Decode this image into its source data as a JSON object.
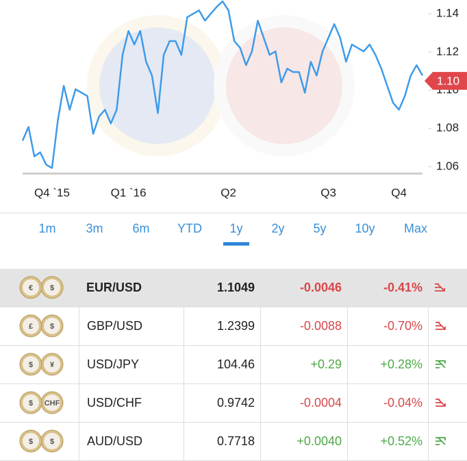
{
  "chart_data": {
    "type": "line",
    "values": [
      1.0736,
      1.0808,
      1.0654,
      1.0675,
      1.0611,
      1.0593,
      1.0844,
      1.1023,
      1.0898,
      1.1005,
      1.0987,
      1.097,
      1.0772,
      1.0862,
      1.0898,
      1.0826,
      1.0898,
      1.1185,
      1.131,
      1.1239,
      1.131,
      1.1149,
      1.1077,
      1.088,
      1.1185,
      1.1257,
      1.1257,
      1.1185,
      1.1382,
      1.14,
      1.1418,
      1.1364,
      1.14,
      1.1436,
      1.1465,
      1.1418,
      1.1257,
      1.1221,
      1.1131,
      1.1203,
      1.1364,
      1.1274,
      1.1185,
      1.1203,
      1.1041,
      1.1113,
      1.1095,
      1.1095,
      1.0987,
      1.1149,
      1.1077,
      1.1203,
      1.1274,
      1.1346,
      1.1274,
      1.1149,
      1.1239,
      1.1221,
      1.1203,
      1.1239,
      1.1185,
      1.1113,
      1.1023,
      1.0934,
      1.0898,
      1.097,
      1.1077,
      1.1131,
      1.1077
    ],
    "color": "#3d9be9",
    "xlim": [
      0,
      68
    ],
    "xticks": [
      {
        "value": 5,
        "label": "Q4 `15"
      },
      {
        "value": 18,
        "label": "Q1 `16"
      },
      {
        "value": 35,
        "label": "Q2"
      },
      {
        "value": 52,
        "label": "Q3"
      },
      {
        "value": 64,
        "label": "Q4"
      }
    ],
    "ylim": [
      1.0564,
      1.1472
    ],
    "yticks": [
      1.06,
      1.08,
      {
        "value": 1.1,
        "label": "1.10"
      },
      1.12,
      1.14
    ],
    "current": {
      "value": 1.1049,
      "label": "1.10",
      "color": "#e0474c"
    }
  },
  "ranges": {
    "items": [
      "1m",
      "3m",
      "6m",
      "YTD",
      "1y",
      "2y",
      "5y",
      "10y",
      "Max"
    ],
    "selected": 4
  },
  "table": {
    "rows": [
      {
        "base_symbol": "€",
        "quote_symbol": "$",
        "pair": "EUR/USD",
        "price": "1.1049",
        "change": "-0.0046",
        "percent": "-0.41%",
        "color": "#d9474b",
        "selected": true
      },
      {
        "base_symbol": "£",
        "quote_symbol": "$",
        "pair": "GBP/USD",
        "price": "1.2399",
        "change": "-0.0088",
        "percent": "-0.70%",
        "color": "#d9474b",
        "selected": false
      },
      {
        "base_symbol": "$",
        "quote_symbol": "¥",
        "pair": "USD/JPY",
        "price": "104.46",
        "change": "+0.29",
        "percent": "+0.28%",
        "color": "#4fa84a",
        "selected": false
      },
      {
        "base_symbol": "$",
        "quote_symbol": "CHF",
        "pair": "USD/CHF",
        "price": "0.9742",
        "change": "-0.0004",
        "percent": "-0.04%",
        "color": "#d9474b",
        "selected": false
      },
      {
        "base_symbol": "$",
        "quote_symbol": "$",
        "pair": "AUD/USD",
        "price": "0.7718",
        "change": "+0.0040",
        "percent": "+0.52%",
        "color": "#4fa84a",
        "selected": false
      }
    ]
  }
}
